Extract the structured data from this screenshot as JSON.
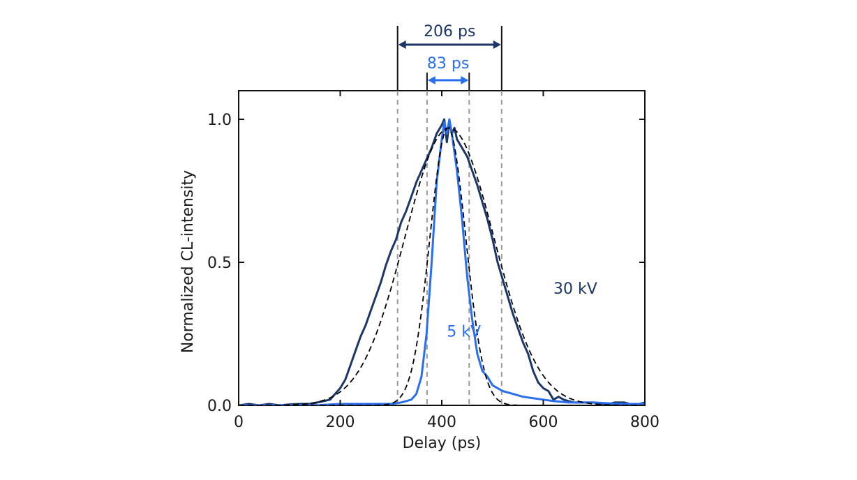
{
  "chart_data": {
    "type": "line",
    "xlabel": "Delay (ps)",
    "ylabel": "Normalized CL-intensity",
    "xlim": [
      0,
      800
    ],
    "ylim": [
      0,
      1.1
    ],
    "x_ticks": [
      0,
      200,
      400,
      600,
      800
    ],
    "x_tick_labels": [
      "0",
      "200",
      "400",
      "600",
      "800"
    ],
    "y_ticks": [
      0,
      0.5,
      1.0
    ],
    "y_tick_labels": [
      "0.0",
      "0.5",
      "1.0"
    ],
    "grid": false,
    "legend": "none",
    "series": [
      {
        "name": "30 kV",
        "color": "#1b3768",
        "style": "solid",
        "x": [
          0,
          20,
          40,
          60,
          80,
          100,
          120,
          140,
          160,
          180,
          200,
          210,
          220,
          230,
          240,
          250,
          260,
          270,
          280,
          290,
          300,
          310,
          320,
          330,
          340,
          350,
          360,
          370,
          380,
          390,
          400,
          405,
          410,
          415,
          420,
          425,
          430,
          440,
          450,
          460,
          470,
          480,
          490,
          500,
          510,
          520,
          530,
          540,
          550,
          560,
          570,
          580,
          590,
          600,
          610,
          620,
          630,
          640,
          660,
          680,
          700,
          720,
          740,
          760,
          780,
          800
        ],
        "y": [
          0.0,
          0.005,
          0.0,
          0.005,
          0.0,
          0.003,
          0.005,
          0.005,
          0.012,
          0.02,
          0.06,
          0.09,
          0.14,
          0.19,
          0.24,
          0.28,
          0.33,
          0.38,
          0.43,
          0.49,
          0.54,
          0.58,
          0.64,
          0.68,
          0.73,
          0.78,
          0.82,
          0.86,
          0.9,
          0.95,
          0.98,
          1.0,
          0.92,
          0.99,
          0.95,
          0.97,
          0.93,
          0.9,
          0.87,
          0.82,
          0.77,
          0.71,
          0.65,
          0.58,
          0.5,
          0.44,
          0.38,
          0.32,
          0.27,
          0.22,
          0.18,
          0.12,
          0.08,
          0.06,
          0.05,
          0.02,
          0.03,
          0.02,
          0.01,
          0.01,
          0.01,
          0.0,
          0.01,
          0.01,
          0.0,
          0.01
        ]
      },
      {
        "name": "5 kV",
        "color": "#2a6ef0",
        "style": "solid",
        "x": [
          0,
          100,
          150,
          200,
          250,
          300,
          320,
          340,
          350,
          360,
          370,
          380,
          390,
          400,
          405,
          410,
          415,
          420,
          430,
          440,
          450,
          460,
          470,
          480,
          490,
          500,
          510,
          520,
          540,
          560,
          580,
          600,
          620,
          650,
          700,
          750,
          800
        ],
        "y": [
          0.0,
          0.0,
          0.0,
          0.005,
          0.005,
          0.005,
          0.01,
          0.02,
          0.04,
          0.1,
          0.25,
          0.5,
          0.78,
          0.93,
          0.99,
          0.95,
          1.0,
          0.95,
          0.82,
          0.65,
          0.45,
          0.3,
          0.18,
          0.12,
          0.1,
          0.07,
          0.06,
          0.05,
          0.04,
          0.03,
          0.025,
          0.02,
          0.015,
          0.01,
          0.01,
          0.005,
          0.005
        ]
      },
      {
        "name": "",
        "color": "#000000",
        "style": "dashed",
        "model": "gaussian",
        "params": {
          "center": 415,
          "amplitude": 0.97,
          "fwhm": 206
        }
      },
      {
        "name": "",
        "color": "#000000",
        "style": "dashed",
        "model": "gaussian",
        "params": {
          "center": 412,
          "amplitude": 0.97,
          "fwhm": 83
        }
      }
    ],
    "annotations": {
      "series_labels": [
        {
          "text": "30 kV",
          "x": 620,
          "y": 0.39,
          "color": "#1b3768"
        },
        {
          "text": "5 kV",
          "x": 410,
          "y": 0.24,
          "color": "#2a6ef0"
        }
      ],
      "fwhm_markers": [
        {
          "label": "206 ps",
          "x_start": 313,
          "x_end": 518,
          "color": "#1b3768"
        },
        {
          "label": "83 ps",
          "x_start": 371,
          "x_end": 454,
          "color": "#2a6ef0"
        }
      ]
    }
  }
}
